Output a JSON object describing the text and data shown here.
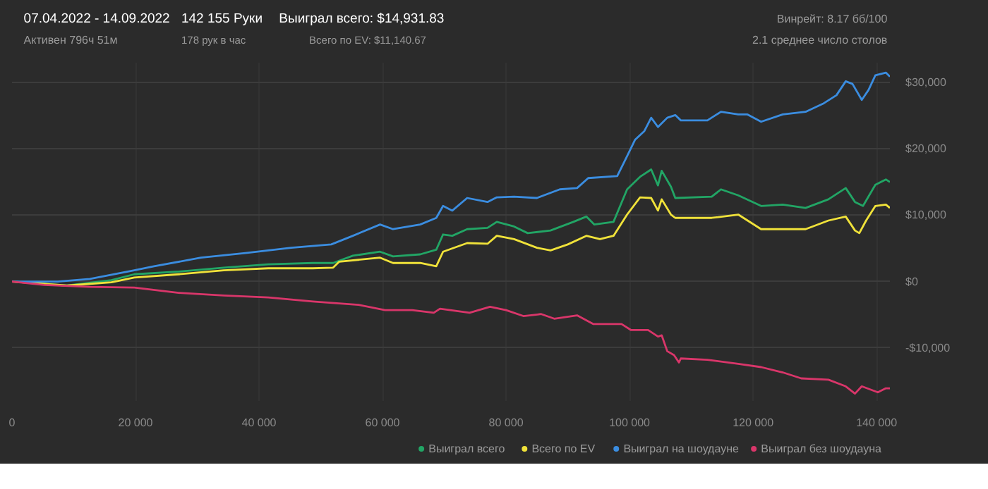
{
  "chart_data": {
    "type": "line",
    "title": "07.04.2022 - 14.09.2022",
    "subtitle": "Активен 796ч 51м",
    "annotations": [
      "142 155 Руки",
      "178 рук в час",
      "Выиграл всего: $14,931.83",
      "Всего по EV: $11,140.67",
      "Винрейт: 8.17 бб/100",
      "2.1 среднее число столов"
    ],
    "xlim": [
      0,
      142155
    ],
    "xticks": [
      0,
      {
        "value": 20000,
        "label": "20 000"
      },
      {
        "value": 40000,
        "label": "40 000"
      },
      {
        "value": 60000,
        "label": "60 000"
      },
      {
        "value": 80000,
        "label": "80 000"
      },
      {
        "value": 100000,
        "label": "100 000"
      },
      {
        "value": 120000,
        "label": "120 000"
      },
      {
        "value": 140000,
        "label": "140 000"
      }
    ],
    "ylim": [
      -18000,
      33000
    ],
    "yticks": [
      {
        "value": -10000,
        "label": "-$10,000"
      },
      {
        "value": 0,
        "label": "$0"
      },
      {
        "value": 10000,
        "label": "$10,000"
      },
      {
        "value": 20000,
        "label": "$20,000"
      },
      {
        "value": 30000,
        "label": "$30,000"
      }
    ],
    "grid": true,
    "legend": "bottom right",
    "series": [
      {
        "name": "Выиграл всего",
        "color": "#22a565",
        "x": [
          0,
          8900,
          16100,
          19800,
          27000,
          34300,
          41500,
          48700,
          52000,
          55200,
          59600,
          61700,
          66100,
          68700,
          69800,
          71300,
          73700,
          77000,
          78500,
          81300,
          83500,
          87200,
          90900,
          93000,
          94300,
          97400,
          99600,
          101700,
          103500,
          104600,
          105200,
          106700,
          107400,
          113300,
          114800,
          117600,
          121300,
          124800,
          128500,
          132200,
          135000,
          136500,
          137800,
          139800,
          141500,
          142155
        ],
        "values": [
          0,
          -600,
          200,
          1100,
          1500,
          2100,
          2600,
          2800,
          2800,
          3900,
          4500,
          3800,
          4100,
          4800,
          7100,
          6900,
          7900,
          8100,
          9000,
          8300,
          7300,
          7700,
          9000,
          9800,
          8600,
          9000,
          13900,
          15800,
          16900,
          14500,
          16700,
          14300,
          12600,
          12800,
          13900,
          13000,
          11400,
          11600,
          11100,
          12400,
          14100,
          12000,
          11400,
          14600,
          15400,
          15000
        ]
      },
      {
        "name": "Всего по EV",
        "color": "#f0e23a",
        "x": [
          0,
          8900,
          16100,
          19800,
          27000,
          34300,
          41500,
          48700,
          52000,
          53000,
          59600,
          61700,
          66100,
          68700,
          69800,
          73700,
          77000,
          78500,
          81300,
          85000,
          87200,
          90000,
          93000,
          95200,
          97400,
          99600,
          101700,
          103500,
          104600,
          105200,
          106700,
          107400,
          113300,
          117600,
          121300,
          128500,
          132200,
          135000,
          136500,
          137200,
          138300,
          139800,
          141500,
          142155
        ],
        "values": [
          0,
          -600,
          -100,
          600,
          1100,
          1700,
          2000,
          2000,
          2100,
          3000,
          3600,
          2800,
          2800,
          2300,
          4500,
          5800,
          5700,
          6900,
          6400,
          5100,
          4700,
          5600,
          6900,
          6400,
          6900,
          10100,
          12700,
          12600,
          10700,
          12400,
          10100,
          9600,
          9600,
          10100,
          7900,
          7900,
          9200,
          9800,
          7700,
          7300,
          9200,
          11400,
          11600,
          11100
        ]
      },
      {
        "name": "Выиграл на шоудауне",
        "color": "#3b8de0",
        "x": [
          0,
          7400,
          12600,
          19800,
          23000,
          30600,
          37800,
          45200,
          51700,
          55200,
          59600,
          61700,
          66100,
          68700,
          69800,
          71300,
          73700,
          77000,
          78500,
          81300,
          85000,
          88700,
          91500,
          93300,
          98000,
          99600,
          100900,
          102400,
          103500,
          104600,
          106100,
          107400,
          108300,
          112600,
          114800,
          117600,
          119100,
          121300,
          124800,
          128500,
          131300,
          133500,
          135000,
          136100,
          137600,
          138700,
          139800,
          141500,
          142155
        ],
        "values": [
          0,
          0,
          400,
          1700,
          2300,
          3600,
          4300,
          5100,
          5600,
          6900,
          8600,
          7900,
          8600,
          9600,
          11400,
          10700,
          12600,
          12000,
          12700,
          12800,
          12600,
          13900,
          14100,
          15600,
          15900,
          18900,
          21400,
          22700,
          24700,
          23300,
          24700,
          25100,
          24300,
          24300,
          25600,
          25200,
          25200,
          24100,
          25200,
          25600,
          26800,
          28100,
          30200,
          29800,
          27400,
          28900,
          31100,
          31500,
          30900
        ]
      },
      {
        "name": "Выиграл без шоудауна",
        "color": "#d9366a",
        "x": [
          0,
          5200,
          12600,
          19800,
          27000,
          34300,
          41500,
          48700,
          56100,
          60400,
          64800,
          68300,
          69300,
          74100,
          77400,
          80000,
          82800,
          85700,
          87800,
          91500,
          94100,
          98700,
          100200,
          103000,
          104600,
          105200,
          106100,
          107200,
          108000,
          108300,
          112600,
          117600,
          121300,
          124800,
          127800,
          132200,
          135000,
          136500,
          137600,
          140200,
          141500,
          142155
        ],
        "values": [
          0,
          -500,
          -800,
          -900,
          -1700,
          -2100,
          -2400,
          -3000,
          -3500,
          -4300,
          -4300,
          -4700,
          -4100,
          -4700,
          -3800,
          -4300,
          -5200,
          -4900,
          -5600,
          -5100,
          -6400,
          -6400,
          -7300,
          -7300,
          -8300,
          -8100,
          -10500,
          -11100,
          -12200,
          -11600,
          -11800,
          -12400,
          -12900,
          -13700,
          -14600,
          -14800,
          -15800,
          -16900,
          -15800,
          -16700,
          -16100,
          -16100
        ]
      }
    ]
  }
}
